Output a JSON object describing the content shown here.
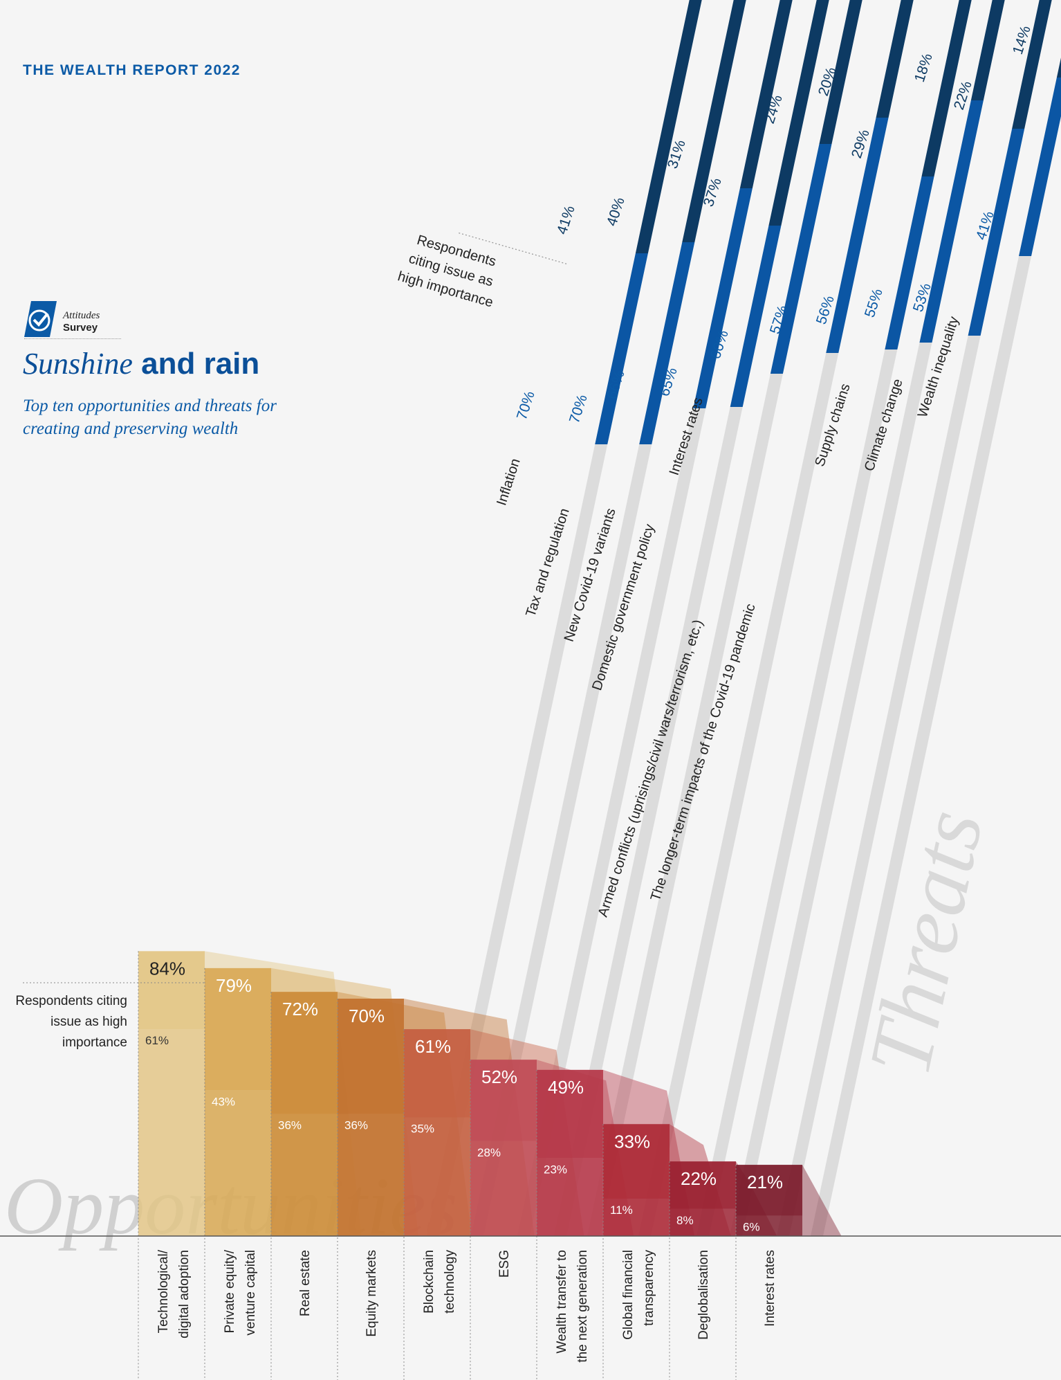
{
  "header": "THE WEALTH REPORT 2022",
  "badge": {
    "line1": "Attitudes",
    "line2": "Survey"
  },
  "title": {
    "part1": "Sunshine",
    "part2": "and rain"
  },
  "subtitle": "Top ten opportunities and threats for creating and preserving wealth",
  "colors": {
    "brand": "#0b5aa6",
    "threat_dark": "#0d3a63",
    "threat_blue": "#0b56a4",
    "threat_gray": "#dcdcdc"
  },
  "chart_data": [
    {
      "type": "bar",
      "name": "Opportunities",
      "title": "Opportunities",
      "note": "Respondents citing issue as high importance",
      "categories": [
        "Technological/ digital adoption",
        "Private equity/ venture capital",
        "Real estate",
        "Equity markets",
        "Blockchain technology",
        "ESG",
        "Wealth transfer to the next generation",
        "Global financial transparency",
        "Deglobalisation",
        "Interest rates"
      ],
      "series": [
        {
          "values": [
            84,
            79,
            72,
            70,
            61,
            52,
            49,
            33,
            22,
            21
          ]
        },
        {
          "values": [
            61,
            43,
            36,
            36,
            35,
            28,
            23,
            11,
            8,
            6
          ]
        }
      ],
      "colors": [
        "#e3c584",
        "#d9a957",
        "#cc8b39",
        "#c2712f",
        "#c55e41",
        "#bf4a55",
        "#b53748",
        "#ad2a37",
        "#9a2030",
        "#7b1a2a"
      ],
      "ylim": [
        0,
        100
      ]
    },
    {
      "type": "bar",
      "name": "Threats",
      "title": "Threats",
      "note": "Respondents citing issue as high importance",
      "categories": [
        "Inflation",
        "Tax and regulation",
        "New Covid-19 variants",
        "Domestic government policy",
        "Interest rates",
        "Armed conflicts (uprisings/civil wars/terrorism, etc.)",
        "The longer-term impacts of the Covid-19 pandemic",
        "Supply chains",
        "Climate change",
        "Wealth inequality"
      ],
      "series": [
        {
          "values": [
            70,
            70,
            66,
            65,
            60,
            57,
            56,
            55,
            53,
            41
          ]
        },
        {
          "values": [
            41,
            40,
            31,
            37,
            24,
            20,
            29,
            18,
            22,
            14
          ]
        }
      ],
      "ylim": [
        0,
        100
      ]
    }
  ]
}
